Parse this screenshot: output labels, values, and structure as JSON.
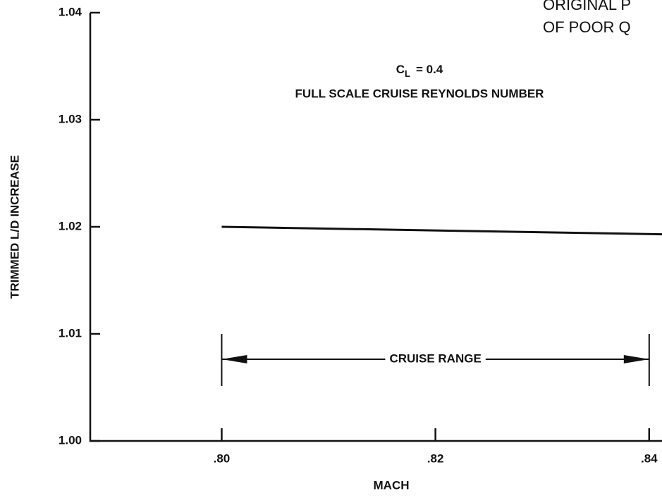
{
  "chart_data": {
    "type": "line",
    "annotations": [
      "ORIGINAL P",
      "OF POOR Q"
    ],
    "cl_label": {
      "symbol": "C",
      "subscript": "L",
      "text": "= 0.4"
    },
    "subtitle": "FULL SCALE CRUISE REYNOLDS NUMBER",
    "x_label": "MACH",
    "y_label": "TRIMMED L/D INCREASE",
    "x": [
      0.8,
      0.8412
    ],
    "values": [
      1.02,
      1.0193
    ],
    "color": "#111111",
    "cruise_range": {
      "label": "CRUISE RANGE",
      "x": [
        0.8,
        0.84
      ]
    },
    "xlim": [
      0.7877,
      0.8412
    ],
    "ylim": [
      1.0,
      1.04
    ],
    "xticks": [
      {
        "value": 0.8,
        "label": ".80"
      },
      {
        "value": 0.82,
        "label": ".82"
      },
      {
        "value": 0.84,
        "label": ".84"
      }
    ],
    "yticks": [
      {
        "value": 1.0,
        "label": "1.00"
      },
      1.01,
      1.02,
      1.03,
      1.04
    ]
  }
}
